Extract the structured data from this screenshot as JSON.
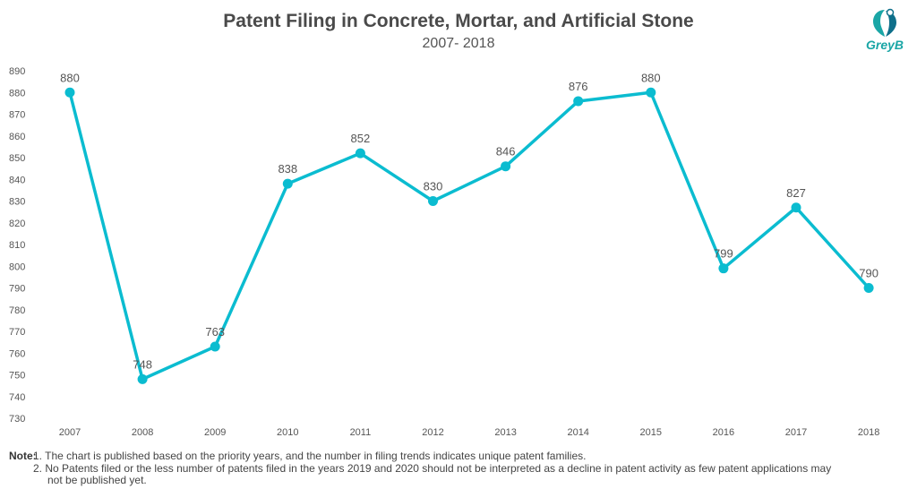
{
  "header": {
    "title": "Patent Filing in Concrete, Mortar, and Artificial Stone",
    "subtitle": "2007- 2018",
    "logo_text": "GreyB"
  },
  "colors": {
    "line": "#0bbcd0",
    "logo": "#1aa6a6"
  },
  "chart_data": {
    "type": "line",
    "categories": [
      "2007",
      "2008",
      "2009",
      "2010",
      "2011",
      "2012",
      "2013",
      "2014",
      "2015",
      "2016",
      "2017",
      "2018"
    ],
    "values": [
      880,
      748,
      763,
      838,
      852,
      830,
      846,
      876,
      880,
      799,
      827,
      790
    ],
    "data_labels": [
      "880",
      "748",
      "763",
      "838",
      "852",
      "830",
      "846",
      "876",
      "880",
      "799",
      "827",
      "790"
    ],
    "ylim": [
      730,
      890
    ],
    "yticks": [
      730,
      740,
      750,
      760,
      770,
      780,
      790,
      800,
      810,
      820,
      830,
      840,
      850,
      860,
      870,
      880,
      890
    ],
    "grid": false,
    "legend": false
  },
  "notes": {
    "label": "Note:",
    "line1": "1. The chart is published based on the priority years, and the number in filing trends indicates unique patent families.",
    "line2": "2. No Patents filed or the less number of patents filed in the years 2019 and 2020 should not be interpreted as a decline in patent activity as few patent applications may",
    "line3": "not be published yet."
  }
}
